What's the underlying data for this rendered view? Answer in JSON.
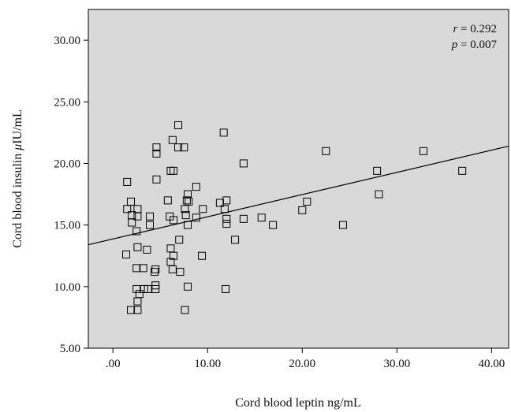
{
  "chart_data": {
    "type": "scatter",
    "title": "",
    "xlabel": "Cord blood leptin ng/mL",
    "ylabel_prefix": "Cord blood insulin ",
    "ylabel_mu": "μ",
    "ylabel_suffix": "IU/mL",
    "xlim": [
      -2.6,
      41.8
    ],
    "ylim": [
      5.0,
      32.5
    ],
    "x_ticks": [
      0,
      10,
      20,
      30,
      40
    ],
    "x_tick_labels": [
      ".00",
      "10.00",
      "20.00",
      "30.00",
      "40.00"
    ],
    "y_ticks": [
      5,
      10,
      15,
      20,
      25,
      30
    ],
    "y_tick_labels": [
      "5.00",
      "10.00",
      "15.00",
      "20.00",
      "25.00",
      "30.00"
    ],
    "grid": false,
    "background": "#d9d9d9",
    "marker": "open-square",
    "annotation": {
      "r_label": "r",
      "r_value": " = 0.292",
      "p_label": "p",
      "p_value": " = 0.007"
    },
    "fit_line": {
      "x": [
        -2.6,
        41.8
      ],
      "y": [
        13.4,
        21.4
      ]
    },
    "points": [
      {
        "x": 1.5,
        "y": 16.3
      },
      {
        "x": 1.5,
        "y": 18.5
      },
      {
        "x": 1.4,
        "y": 12.6
      },
      {
        "x": 1.9,
        "y": 16.9
      },
      {
        "x": 2.0,
        "y": 15.8
      },
      {
        "x": 2.0,
        "y": 15.2
      },
      {
        "x": 1.9,
        "y": 8.1
      },
      {
        "x": 2.6,
        "y": 16.3
      },
      {
        "x": 2.6,
        "y": 15.7
      },
      {
        "x": 2.5,
        "y": 14.5
      },
      {
        "x": 2.6,
        "y": 13.2
      },
      {
        "x": 2.5,
        "y": 11.5
      },
      {
        "x": 2.5,
        "y": 9.8
      },
      {
        "x": 2.6,
        "y": 8.8
      },
      {
        "x": 2.6,
        "y": 8.1
      },
      {
        "x": 2.8,
        "y": 9.4
      },
      {
        "x": 3.2,
        "y": 11.5
      },
      {
        "x": 3.3,
        "y": 9.8
      },
      {
        "x": 3.7,
        "y": 9.8
      },
      {
        "x": 3.6,
        "y": 13.0
      },
      {
        "x": 3.9,
        "y": 15.7
      },
      {
        "x": 3.9,
        "y": 15.0
      },
      {
        "x": 4.4,
        "y": 11.2
      },
      {
        "x": 4.5,
        "y": 11.4
      },
      {
        "x": 4.5,
        "y": 10.1
      },
      {
        "x": 4.5,
        "y": 9.8
      },
      {
        "x": 4.6,
        "y": 21.3
      },
      {
        "x": 4.6,
        "y": 20.8
      },
      {
        "x": 4.6,
        "y": 18.7
      },
      {
        "x": 5.8,
        "y": 17.0
      },
      {
        "x": 6.0,
        "y": 15.7
      },
      {
        "x": 6.1,
        "y": 19.4
      },
      {
        "x": 6.1,
        "y": 13.1
      },
      {
        "x": 6.1,
        "y": 12.0
      },
      {
        "x": 6.4,
        "y": 19.4
      },
      {
        "x": 6.3,
        "y": 21.9
      },
      {
        "x": 6.4,
        "y": 15.4
      },
      {
        "x": 6.4,
        "y": 12.5
      },
      {
        "x": 6.3,
        "y": 11.4
      },
      {
        "x": 6.9,
        "y": 23.1
      },
      {
        "x": 6.9,
        "y": 21.3
      },
      {
        "x": 7.0,
        "y": 13.8
      },
      {
        "x": 7.1,
        "y": 11.2
      },
      {
        "x": 7.5,
        "y": 21.3
      },
      {
        "x": 7.6,
        "y": 8.1
      },
      {
        "x": 7.6,
        "y": 16.3
      },
      {
        "x": 7.7,
        "y": 15.8
      },
      {
        "x": 7.9,
        "y": 17.5
      },
      {
        "x": 7.8,
        "y": 17.0
      },
      {
        "x": 7.9,
        "y": 15.0
      },
      {
        "x": 7.9,
        "y": 10.0
      },
      {
        "x": 8.0,
        "y": 16.9
      },
      {
        "x": 8.8,
        "y": 18.1
      },
      {
        "x": 8.8,
        "y": 15.6
      },
      {
        "x": 9.4,
        "y": 12.5
      },
      {
        "x": 9.5,
        "y": 16.3
      },
      {
        "x": 11.3,
        "y": 16.8
      },
      {
        "x": 11.7,
        "y": 22.5
      },
      {
        "x": 11.8,
        "y": 16.3
      },
      {
        "x": 12.0,
        "y": 17.0
      },
      {
        "x": 12.0,
        "y": 15.5
      },
      {
        "x": 12.0,
        "y": 15.1
      },
      {
        "x": 11.9,
        "y": 9.8
      },
      {
        "x": 12.9,
        "y": 13.8
      },
      {
        "x": 13.8,
        "y": 20.0
      },
      {
        "x": 13.8,
        "y": 15.5
      },
      {
        "x": 15.7,
        "y": 15.6
      },
      {
        "x": 16.9,
        "y": 15.0
      },
      {
        "x": 20.0,
        "y": 16.2
      },
      {
        "x": 20.5,
        "y": 16.9
      },
      {
        "x": 22.5,
        "y": 21.0
      },
      {
        "x": 24.3,
        "y": 15.0
      },
      {
        "x": 27.9,
        "y": 19.4
      },
      {
        "x": 28.1,
        "y": 17.5
      },
      {
        "x": 32.8,
        "y": 21.0
      },
      {
        "x": 36.9,
        "y": 19.4
      }
    ]
  }
}
